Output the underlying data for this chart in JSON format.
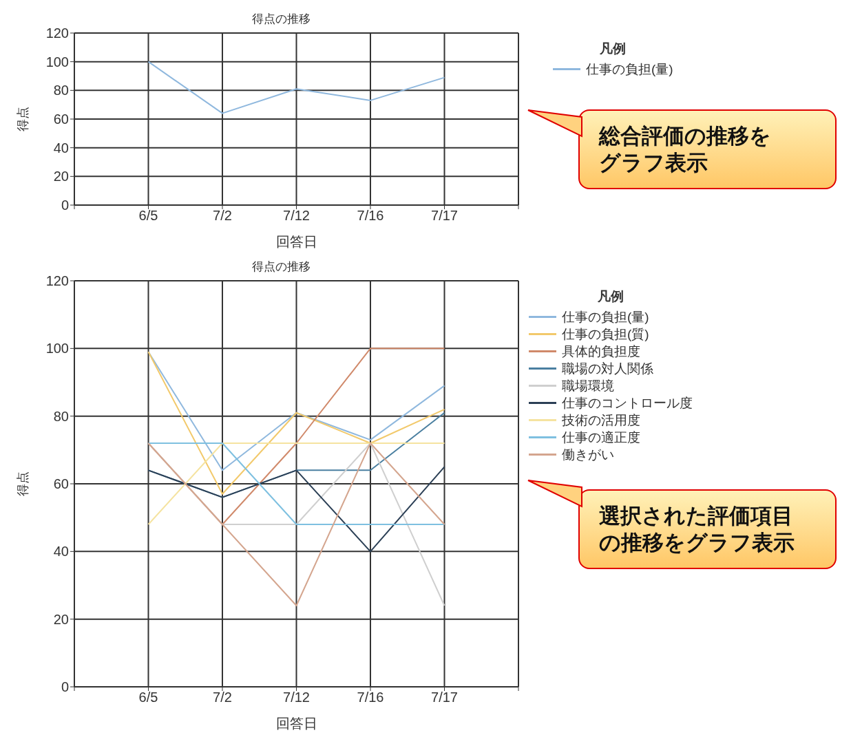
{
  "chart_data": [
    {
      "type": "line",
      "title": "得点の推移",
      "xlabel": "回答日",
      "ylabel": "得点",
      "legend_title": "凡例",
      "legend": "top right",
      "grid": true,
      "marker": "none",
      "line_style": "solid",
      "categories": [
        null,
        "6/5",
        "7/2",
        "7/12",
        "7/16",
        "7/17",
        null
      ],
      "ylim": [
        0,
        120
      ],
      "yticks": [
        0,
        20,
        40,
        60,
        80,
        100,
        120
      ],
      "series": [
        {
          "name": "仕事の負担(量)",
          "color": "#8fb8de",
          "values": [
            null,
            100,
            64,
            81,
            73,
            89,
            null
          ]
        }
      ],
      "annotations": [
        "総合評価の推移をグラフ表示"
      ]
    },
    {
      "type": "line",
      "title": "得点の推移",
      "xlabel": "回答日",
      "ylabel": "得点",
      "legend_title": "凡例",
      "legend": "top right",
      "grid": true,
      "marker": "none",
      "line_style": "solid",
      "categories": [
        null,
        "6/5",
        "7/2",
        "7/12",
        "7/16",
        "7/17",
        null
      ],
      "ylim": [
        0,
        120
      ],
      "yticks": [
        0,
        20,
        40,
        60,
        80,
        100,
        120
      ],
      "series": [
        {
          "name": "仕事の負担(量)",
          "color": "#8fb8de",
          "values": [
            null,
            99,
            64,
            81,
            73,
            89,
            null
          ]
        },
        {
          "name": "仕事の負担(質)",
          "color": "#f2c96b",
          "values": [
            null,
            99,
            57,
            81,
            72,
            82,
            null
          ]
        },
        {
          "name": "具体的負担度",
          "color": "#d0896a",
          "values": [
            null,
            72,
            48,
            72,
            100,
            100,
            null
          ]
        },
        {
          "name": "職場の対人関係",
          "color": "#4a7fa0",
          "values": [
            null,
            64,
            56,
            64,
            64,
            81,
            null
          ]
        },
        {
          "name": "職場環境",
          "color": "#cfcfcf",
          "values": [
            null,
            72,
            48,
            48,
            72,
            24,
            null
          ]
        },
        {
          "name": "仕事のコントロール度",
          "color": "#2b3f55",
          "values": [
            null,
            64,
            56,
            64,
            40,
            65,
            null
          ]
        },
        {
          "name": "技術の活用度",
          "color": "#f5e3a0",
          "values": [
            null,
            48,
            72,
            72,
            72,
            72,
            null
          ]
        },
        {
          "name": "仕事の適正度",
          "color": "#7ec0e0",
          "values": [
            null,
            72,
            72,
            48,
            48,
            48,
            null
          ]
        },
        {
          "name": "働きがい",
          "color": "#d4a58e",
          "values": [
            null,
            72,
            48,
            24,
            72,
            48,
            null
          ]
        }
      ],
      "annotations": [
        "選択された評価項目の推移をグラフ表示"
      ]
    }
  ]
}
